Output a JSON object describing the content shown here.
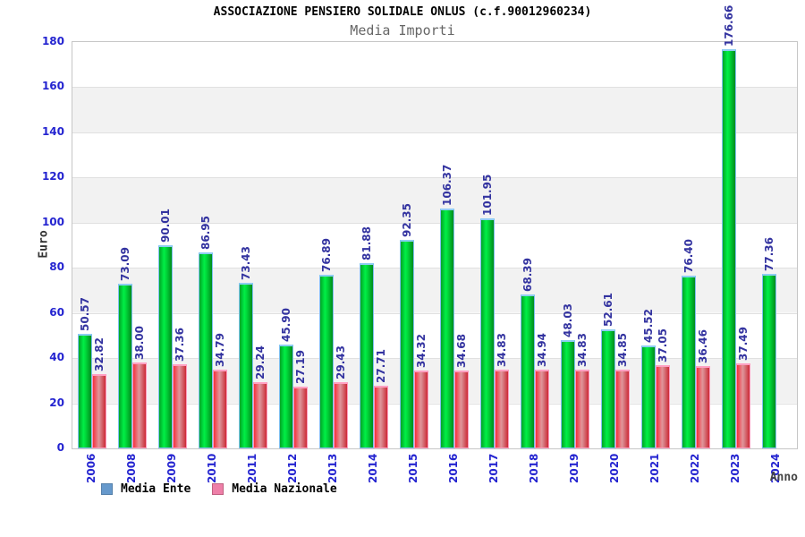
{
  "header": {
    "title": "ASSOCIAZIONE PENSIERO SOLIDALE ONLUS (c.f.90012960234)",
    "subtitle": "Media Importi"
  },
  "axes": {
    "y_label": "Euro",
    "x_label": "Anno",
    "yticks": [
      0,
      20,
      40,
      60,
      80,
      100,
      120,
      140,
      160,
      180
    ]
  },
  "legend": {
    "items": [
      {
        "label": "Media Ente",
        "swatch_color": "#6699cc"
      },
      {
        "label": "Media Nazionale",
        "swatch_color": "#ee7fa8"
      }
    ]
  },
  "colors": {
    "bar_media_ente": "#00cc33",
    "bar_media_nazionale": "#dd4450",
    "axis_text_blue": "#2424d0",
    "value_label_blue": "#3333a0",
    "band_gray": "#f2f2f2",
    "subtitle_gray": "#666666"
  },
  "chart_data": {
    "type": "bar",
    "title": "ASSOCIAZIONE PENSIERO SOLIDALE ONLUS (c.f.90012960234)",
    "subtitle": "Media Importi",
    "xlabel": "Anno",
    "ylabel": "Euro",
    "ylim": [
      0,
      180
    ],
    "ytick_step": 20,
    "grid": true,
    "legend_position": "bottom",
    "value_label_decimals": 2,
    "categories": [
      "2006",
      "2008",
      "2009",
      "2010",
      "2011",
      "2012",
      "2013",
      "2014",
      "2015",
      "2016",
      "2017",
      "2018",
      "2019",
      "2020",
      "2021",
      "2022",
      "2023",
      "2024"
    ],
    "series": [
      {
        "name": "Media Ente",
        "values": [
          50.57,
          73.09,
          90.01,
          86.95,
          73.43,
          45.9,
          76.89,
          81.88,
          92.35,
          106.37,
          101.95,
          68.39,
          48.03,
          52.61,
          45.52,
          76.4,
          176.66,
          77.36
        ]
      },
      {
        "name": "Media Nazionale",
        "values": [
          32.82,
          38.0,
          37.36,
          34.79,
          29.24,
          27.19,
          29.43,
          27.71,
          34.32,
          34.68,
          34.83,
          34.94,
          34.83,
          34.85,
          37.05,
          36.46,
          37.49,
          null
        ]
      }
    ]
  }
}
